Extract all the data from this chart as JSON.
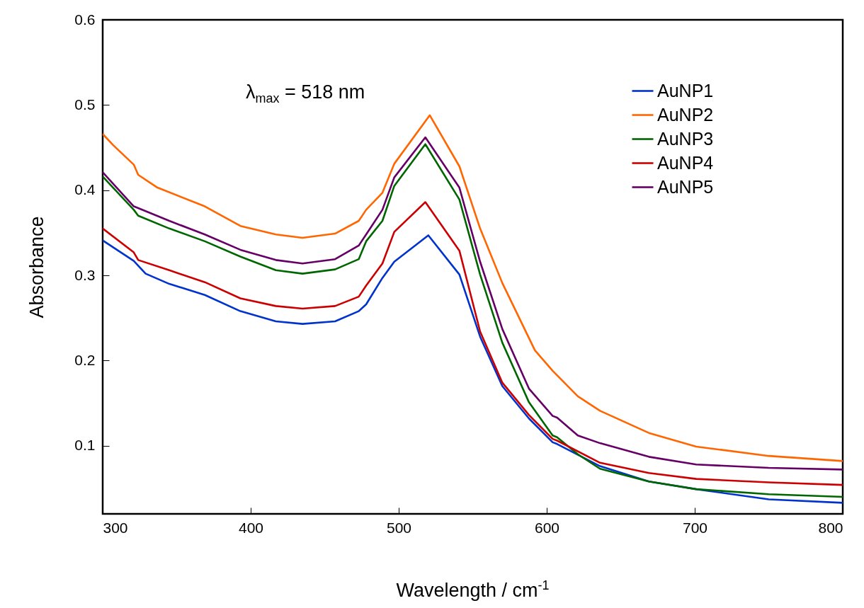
{
  "chart_data": {
    "type": "line",
    "xlabel": "Wavelength / cm$^{-1}$",
    "ylabel": "Absorbance",
    "annotations": [
      "λ$_{max}$ = 518 nm"
    ],
    "xlim": [
      300,
      800
    ],
    "xticks": [
      300,
      400,
      500,
      600,
      700,
      800
    ],
    "ylim": [
      0.02,
      0.6
    ],
    "yticks": [
      0.1,
      0.2,
      0.3,
      0.4,
      0.5,
      0.6
    ],
    "legend": "top right",
    "series": [
      {
        "name": "AuNP1",
        "color": "#0033cc",
        "x": [
          300,
          321,
          329,
          345,
          369,
          393,
          417,
          435,
          457,
          473,
          478,
          489,
          497,
          520,
          541,
          555,
          570,
          588,
          604,
          607,
          636,
          669,
          701,
          750,
          800
        ],
        "values": [
          0.341,
          0.317,
          0.302,
          0.29,
          0.277,
          0.258,
          0.246,
          0.243,
          0.246,
          0.258,
          0.266,
          0.297,
          0.316,
          0.347,
          0.301,
          0.228,
          0.17,
          0.132,
          0.104,
          0.102,
          0.076,
          0.058,
          0.049,
          0.037,
          0.033
        ]
      },
      {
        "name": "AuNP2",
        "color": "#ff6600",
        "x": [
          300,
          307,
          321,
          324,
          337,
          369,
          393,
          417,
          435,
          457,
          473,
          478,
          489,
          497,
          521,
          541,
          555,
          570,
          592,
          604,
          621,
          636,
          669,
          701,
          750,
          800
        ],
        "values": [
          0.466,
          0.453,
          0.43,
          0.418,
          0.403,
          0.381,
          0.358,
          0.348,
          0.344,
          0.349,
          0.364,
          0.377,
          0.397,
          0.431,
          0.488,
          0.428,
          0.355,
          0.291,
          0.212,
          0.188,
          0.158,
          0.141,
          0.115,
          0.099,
          0.088,
          0.082
        ]
      },
      {
        "name": "AuNP3",
        "color": "#006600",
        "x": [
          300,
          321,
          324,
          345,
          369,
          393,
          417,
          435,
          457,
          473,
          478,
          489,
          497,
          518,
          541,
          555,
          570,
          588,
          604,
          607,
          621,
          636,
          669,
          701,
          750,
          800
        ],
        "values": [
          0.416,
          0.377,
          0.37,
          0.355,
          0.34,
          0.322,
          0.306,
          0.302,
          0.307,
          0.319,
          0.34,
          0.364,
          0.405,
          0.454,
          0.389,
          0.301,
          0.221,
          0.151,
          0.112,
          0.11,
          0.09,
          0.073,
          0.058,
          0.049,
          0.043,
          0.04
        ]
      },
      {
        "name": "AuNP4",
        "color": "#cc0000",
        "x": [
          300,
          321,
          324,
          345,
          369,
          393,
          417,
          435,
          457,
          473,
          478,
          489,
          497,
          518,
          541,
          555,
          570,
          588,
          604,
          607,
          636,
          669,
          701,
          750,
          800
        ],
        "values": [
          0.355,
          0.327,
          0.318,
          0.306,
          0.292,
          0.273,
          0.264,
          0.261,
          0.264,
          0.275,
          0.288,
          0.314,
          0.351,
          0.386,
          0.329,
          0.234,
          0.174,
          0.136,
          0.108,
          0.106,
          0.08,
          0.068,
          0.061,
          0.057,
          0.054
        ]
      },
      {
        "name": "AuNP5",
        "color": "#660066",
        "x": [
          300,
          321,
          324,
          345,
          369,
          393,
          417,
          435,
          457,
          473,
          478,
          489,
          497,
          518,
          541,
          555,
          570,
          588,
          604,
          607,
          621,
          636,
          669,
          701,
          750,
          800
        ],
        "values": [
          0.421,
          0.381,
          0.379,
          0.364,
          0.348,
          0.33,
          0.318,
          0.314,
          0.319,
          0.335,
          0.348,
          0.377,
          0.415,
          0.462,
          0.403,
          0.316,
          0.237,
          0.167,
          0.135,
          0.133,
          0.112,
          0.103,
          0.087,
          0.078,
          0.074,
          0.072
        ]
      }
    ]
  }
}
